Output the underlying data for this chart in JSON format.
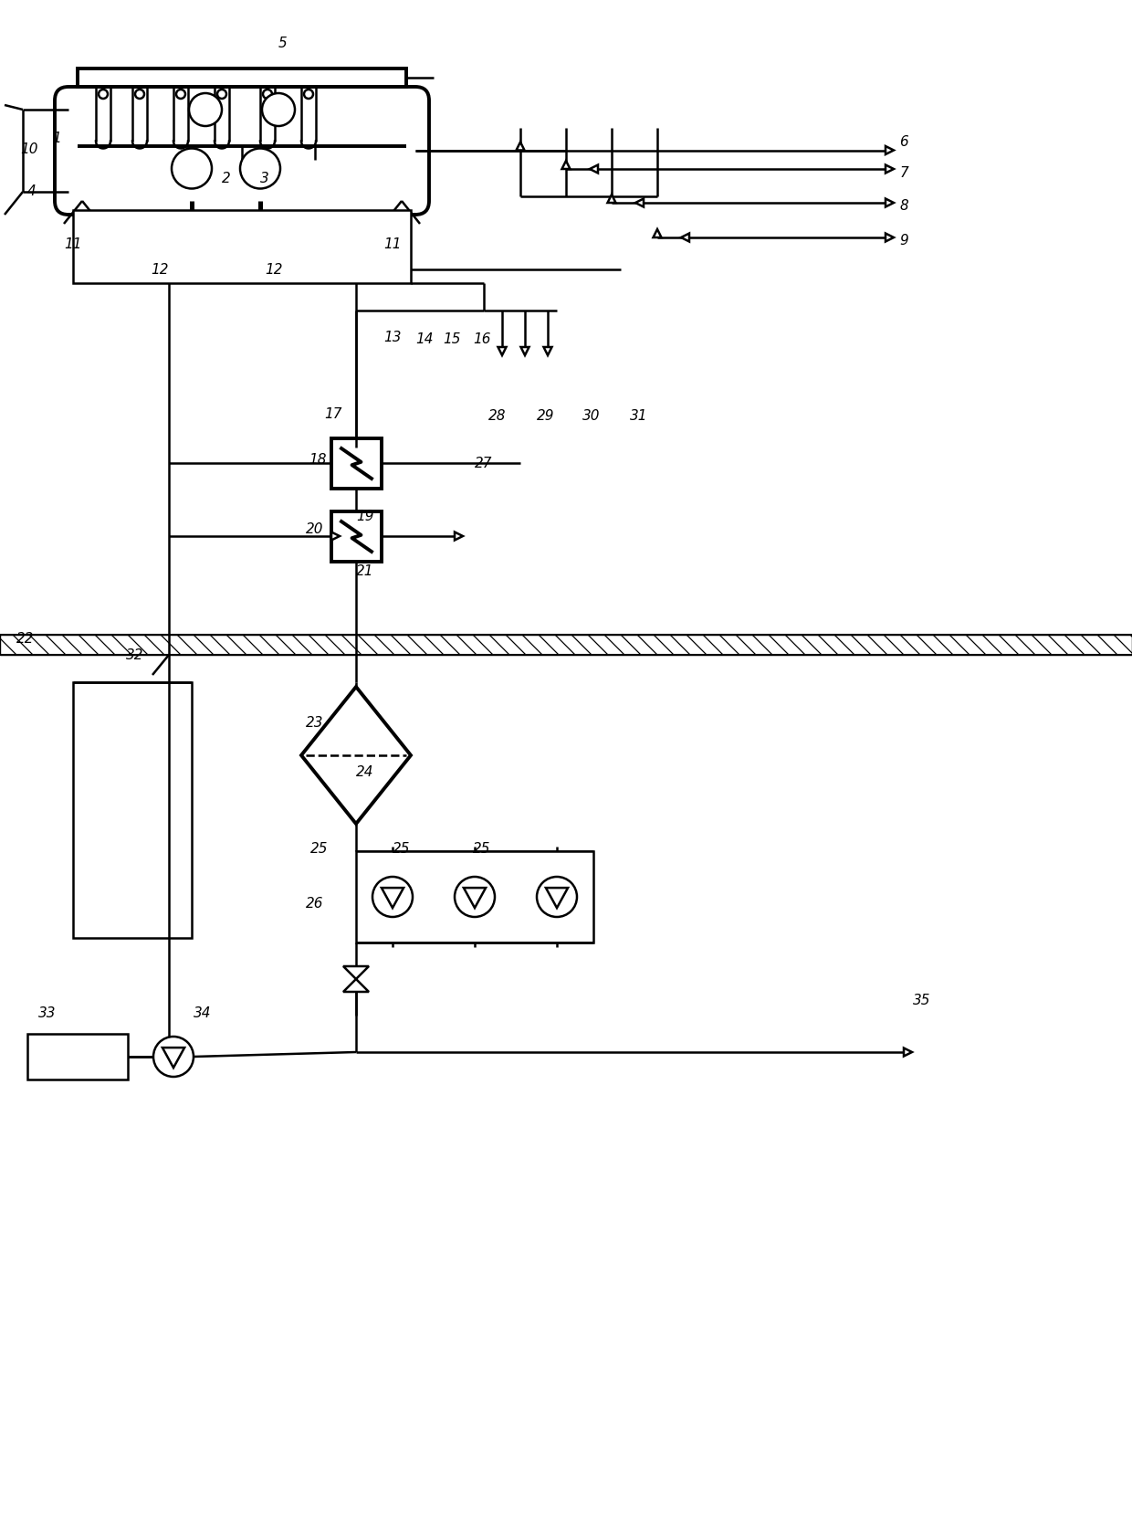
{
  "bg": "#ffffff",
  "lc": "#000000",
  "lw": 1.8,
  "tlw": 2.8,
  "fig_w": 12.4,
  "fig_h": 16.72,
  "dpi": 100
}
